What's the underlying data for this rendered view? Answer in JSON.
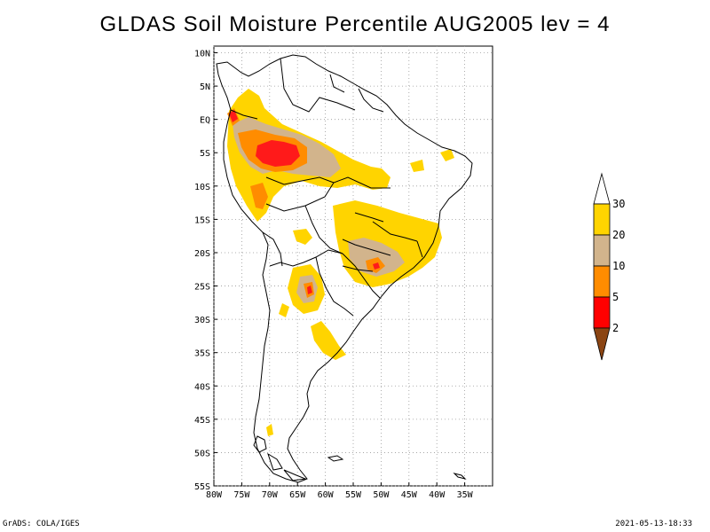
{
  "title": "GLDAS Soil Moisture Percentile AUG2005 lev = 4",
  "map": {
    "lon_range": [
      -80,
      -30
    ],
    "lat_range": [
      -55,
      11
    ],
    "lat_labels": [
      "10N",
      "5N",
      "EQ",
      "5S",
      "10S",
      "15S",
      "20S",
      "25S",
      "30S",
      "35S",
      "40S",
      "45S",
      "50S",
      "55S"
    ],
    "lat_values": [
      10,
      5,
      0,
      -5,
      -10,
      -15,
      -20,
      -25,
      -30,
      -35,
      -40,
      -45,
      -50,
      -55
    ],
    "lon_labels": [
      "80W",
      "75W",
      "70W",
      "65W",
      "60W",
      "55W",
      "50W",
      "45W",
      "40W",
      "35W"
    ],
    "lon_values": [
      -80,
      -75,
      -70,
      -65,
      -60,
      -55,
      -50,
      -45,
      -40,
      -35
    ],
    "gridlines": "dotted"
  },
  "legend": {
    "labels": [
      "30",
      "20",
      "10",
      "5",
      "2"
    ],
    "colors": {
      "above_30": "#ffffff",
      "20_30": "#ffd400",
      "10_20": "#d2b48c",
      "5_10": "#ff8c00",
      "2_5": "#ff0000",
      "below_2": "#8b4513"
    }
  },
  "colors": {
    "yellow": "#ffd400",
    "tan": "#d2b48c",
    "orange": "#ff8c00",
    "red": "#ff1a1a",
    "coast": "#000000"
  },
  "footer": {
    "left": "GrADS: COLA/IGES",
    "right": "2021-05-13-18:33"
  }
}
